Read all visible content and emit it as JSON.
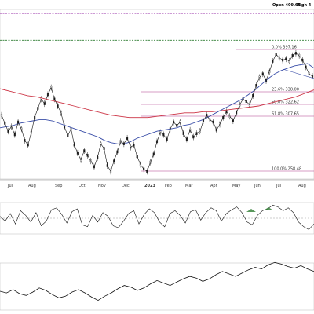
{
  "header": {
    "open_label": "Open 409.65",
    "high_label": "High 4"
  },
  "chart_data": {
    "type": "line",
    "title": "",
    "x_axis": {
      "tick_labels": [
        "Jul",
        "Aug",
        "Sep",
        "Oct",
        "Nov",
        "Dec",
        "2023",
        "Feb",
        "Mar",
        "Apr",
        "May",
        "Jun",
        "Jul",
        "Aug"
      ],
      "bold_tick": "2023"
    },
    "price_panel": {
      "y_range": [
        352,
        418
      ],
      "horizontal_levels": [
        {
          "name": "resistance-dotted-magenta",
          "value": 418,
          "color": "#9933aa"
        },
        {
          "name": "resistance-dotted-green",
          "value": 407,
          "color": "#2e7d32"
        }
      ],
      "fibonacci": [
        {
          "label": "0.0% 397.16",
          "value": 397.16
        },
        {
          "label": "23.6% 338.00",
          "value": 338.0
        },
        {
          "label": "50.0% 322.62",
          "value": 322.62
        },
        {
          "label": "61.8% 307.65",
          "value": 307.65
        },
        {
          "label": "100.0% 258.48",
          "value": 258.48
        }
      ],
      "price_series": [
        362,
        355,
        348,
        352,
        345,
        356,
        350,
        340,
        336,
        347,
        360,
        368,
        376,
        372,
        380,
        386,
        376,
        370,
        364,
        352,
        344,
        350,
        336,
        329,
        323,
        331,
        327,
        322,
        317,
        325,
        337,
        333,
        318,
        313,
        322,
        330,
        339,
        337,
        342,
        334,
        336,
        326,
        319,
        315,
        313,
        321,
        328,
        339,
        347,
        345,
        341,
        350,
        356,
        353,
        356,
        346,
        341,
        349,
        343,
        346,
        348,
        357,
        362,
        358,
        356,
        349,
        354,
        360,
        365,
        361,
        357,
        364,
        371,
        376,
        374,
        371,
        379,
        388,
        395,
        398,
        392,
        400,
        409,
        415,
        412,
        410,
        411,
        409,
        414,
        416,
        414,
        410,
        404,
        398,
        396
      ],
      "ma_blue": [
        351,
        352,
        353,
        355,
        356,
        357,
        358,
        358,
        357,
        355,
        353,
        351,
        349,
        347,
        345,
        343,
        340,
        338,
        337,
        337,
        339,
        342,
        344,
        346,
        348,
        349,
        350,
        351,
        353,
        354,
        356,
        358,
        361,
        364,
        367,
        370,
        373,
        376,
        380,
        384,
        389,
        394,
        398,
        401,
        403,
        405,
        406,
        407,
        403
      ],
      "ma_red": [
        385,
        383,
        381,
        379,
        378,
        376,
        374,
        372,
        370,
        368,
        366,
        364,
        362,
        361,
        360,
        360,
        360,
        361,
        362,
        363,
        364,
        364,
        365,
        365,
        366,
        367,
        368,
        369,
        370,
        372,
        374,
        376,
        378,
        381,
        384
      ]
    },
    "momentum_panel": {
      "zero_line": 0,
      "series": [
        2,
        -3,
        5,
        -6,
        8,
        3,
        -4,
        6,
        -8,
        -3,
        9,
        11,
        4,
        -5,
        7,
        10,
        -7,
        -9,
        3,
        -4,
        6,
        2,
        -8,
        -10,
        -3,
        5,
        8,
        -6,
        4,
        10,
        6,
        -4,
        -9,
        5,
        8,
        3,
        -5,
        7,
        9,
        -2,
        6,
        11,
        8,
        -3,
        5,
        9,
        12,
        6,
        -4,
        -7,
        3,
        8,
        10,
        14,
        12,
        8,
        11,
        6,
        -4,
        -9,
        -12,
        -6
      ]
    },
    "ratio_panel": {
      "series": [
        20,
        18,
        22,
        17,
        15,
        19,
        24,
        21,
        16,
        12,
        14,
        19,
        22,
        18,
        13,
        9,
        14,
        18,
        23,
        27,
        25,
        21,
        24,
        29,
        33,
        30,
        27,
        31,
        35,
        38,
        36,
        32,
        35,
        40,
        44,
        41,
        38,
        42,
        46,
        49,
        47,
        52,
        55,
        53,
        50,
        48,
        51,
        47,
        44
      ]
    }
  }
}
